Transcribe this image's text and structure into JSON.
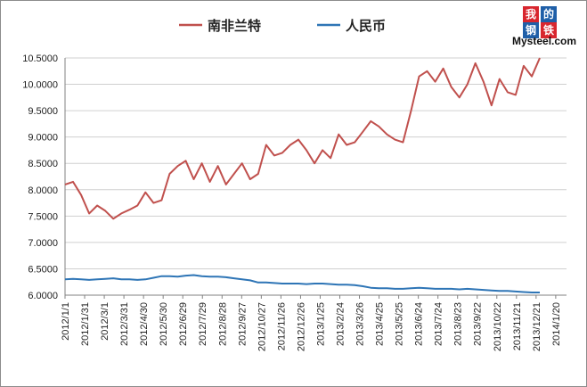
{
  "chart_data": {
    "type": "line",
    "title": "",
    "xlabel": "",
    "ylabel": "",
    "ylim": [
      6.0,
      10.5
    ],
    "ytick_labels": [
      "6.0000",
      "6.5000",
      "7.0000",
      "7.5000",
      "8.0000",
      "8.5000",
      "9.0000",
      "9.5000",
      "10.0000",
      "10.5000"
    ],
    "xtick_labels": [
      "2012/1/1",
      "2012/1/31",
      "2012/3/1",
      "2012/3/31",
      "2012/4/30",
      "2012/5/30",
      "2012/6/29",
      "2012/7/29",
      "2012/8/28",
      "2012/9/27",
      "2012/10/27",
      "2012/11/26",
      "2012/12/26",
      "2013/1/25",
      "2013/2/24",
      "2013/3/26",
      "2013/4/25",
      "2013/5/25",
      "2013/6/24",
      "2013/7/24",
      "2013/8/23",
      "2013/9/22",
      "2013/10/22",
      "2013/11/21",
      "2013/12/21",
      "2014/1/20"
    ],
    "grid": true,
    "legend_position": "top",
    "series": [
      {
        "name": "南非兰特",
        "color": "#c0504d",
        "values": [
          8.1,
          8.15,
          7.9,
          7.55,
          7.7,
          7.6,
          7.45,
          7.55,
          7.62,
          7.7,
          7.95,
          7.75,
          7.8,
          8.3,
          8.45,
          8.55,
          8.2,
          8.5,
          8.15,
          8.45,
          8.1,
          8.3,
          8.5,
          8.2,
          8.3,
          8.85,
          8.65,
          8.7,
          8.85,
          8.95,
          8.75,
          8.5,
          8.75,
          8.6,
          9.05,
          8.85,
          8.9,
          9.1,
          9.3,
          9.2,
          9.05,
          8.95,
          8.9,
          9.5,
          10.15,
          10.25,
          10.05,
          10.3,
          9.95,
          9.75,
          10.0,
          10.4,
          10.05,
          9.6,
          10.1,
          9.85,
          9.8,
          10.35,
          10.15,
          10.5
        ]
      },
      {
        "name": "人民币",
        "color": "#2e75b6",
        "values": [
          6.3,
          6.31,
          6.3,
          6.29,
          6.3,
          6.31,
          6.32,
          6.3,
          6.3,
          6.29,
          6.3,
          6.33,
          6.36,
          6.36,
          6.35,
          6.37,
          6.38,
          6.36,
          6.35,
          6.35,
          6.34,
          6.32,
          6.3,
          6.28,
          6.24,
          6.24,
          6.23,
          6.22,
          6.22,
          6.22,
          6.21,
          6.22,
          6.22,
          6.21,
          6.2,
          6.2,
          6.19,
          6.17,
          6.14,
          6.13,
          6.13,
          6.12,
          6.12,
          6.13,
          6.14,
          6.13,
          6.12,
          6.12,
          6.12,
          6.11,
          6.12,
          6.11,
          6.1,
          6.09,
          6.08,
          6.08,
          6.07,
          6.06,
          6.05,
          6.05
        ]
      }
    ]
  },
  "logo": {
    "cn_chars": [
      "我",
      "的",
      "钢",
      "铁"
    ],
    "text": "Mysteel.com"
  }
}
